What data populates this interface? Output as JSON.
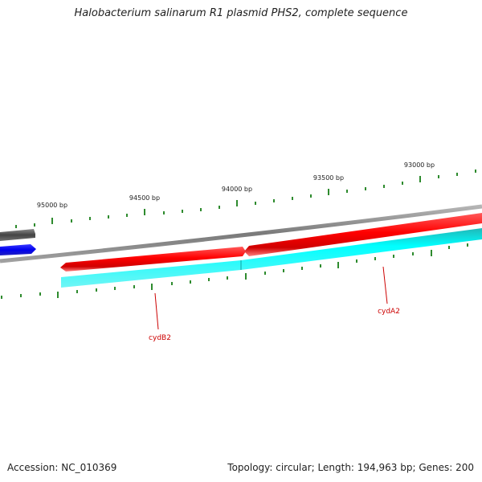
{
  "title": "Halobacterium salinarum R1 plasmid PHS2, complete sequence",
  "footer": {
    "accession": "Accession: NC_010369",
    "summary": "Topology: circular; Length: 194,963 bp; Genes: 200"
  },
  "colors": {
    "backbone": "#808080",
    "forward_gene": "#ff0000",
    "reverse_gene": "#00e5e5",
    "other_gene": "#0000ff",
    "other_gene_dark": "#555555",
    "tick": "#2e8b2e",
    "gene_label": "#cc0000"
  },
  "scale": {
    "major_labels": [
      "95000 bp",
      "94500 bp",
      "94000 bp",
      "93500 bp",
      "93000 bp"
    ]
  },
  "genes": [
    {
      "name": "cydB2",
      "strand": "reverse"
    },
    {
      "name": "cydA2",
      "strand": "reverse"
    }
  ],
  "forward_features": [
    {
      "name": "red-gene-left",
      "strand": "forward"
    },
    {
      "name": "red-gene-right",
      "strand": "forward"
    }
  ]
}
